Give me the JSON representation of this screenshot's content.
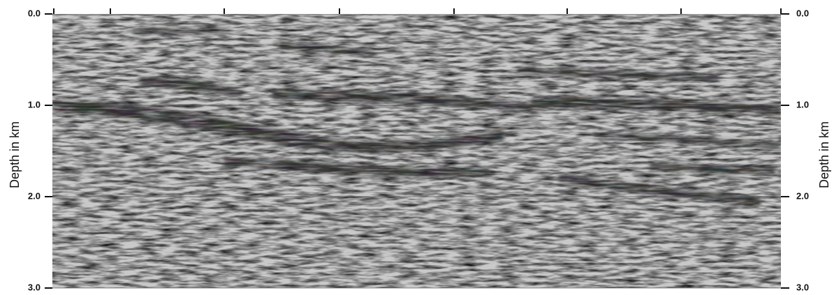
{
  "chart_data": {
    "type": "image",
    "ylabel": "Depth in km",
    "y2label": "Depth in km",
    "ylim": [
      0,
      3
    ],
    "yticks": [
      {
        "value": 0,
        "label": "0.0"
      },
      {
        "value": 1,
        "label": "1.0"
      },
      {
        "value": 2,
        "label": "2.0"
      },
      {
        "value": 3,
        "label": "3.0"
      }
    ],
    "y2lim": [
      0,
      3
    ],
    "y2ticks": [
      {
        "value": 0,
        "label": "0.0"
      },
      {
        "value": 1,
        "label": "1.0"
      },
      {
        "value": 2,
        "label": "2.0"
      },
      {
        "value": 3,
        "label": "3.0"
      }
    ],
    "grid": true
  }
}
